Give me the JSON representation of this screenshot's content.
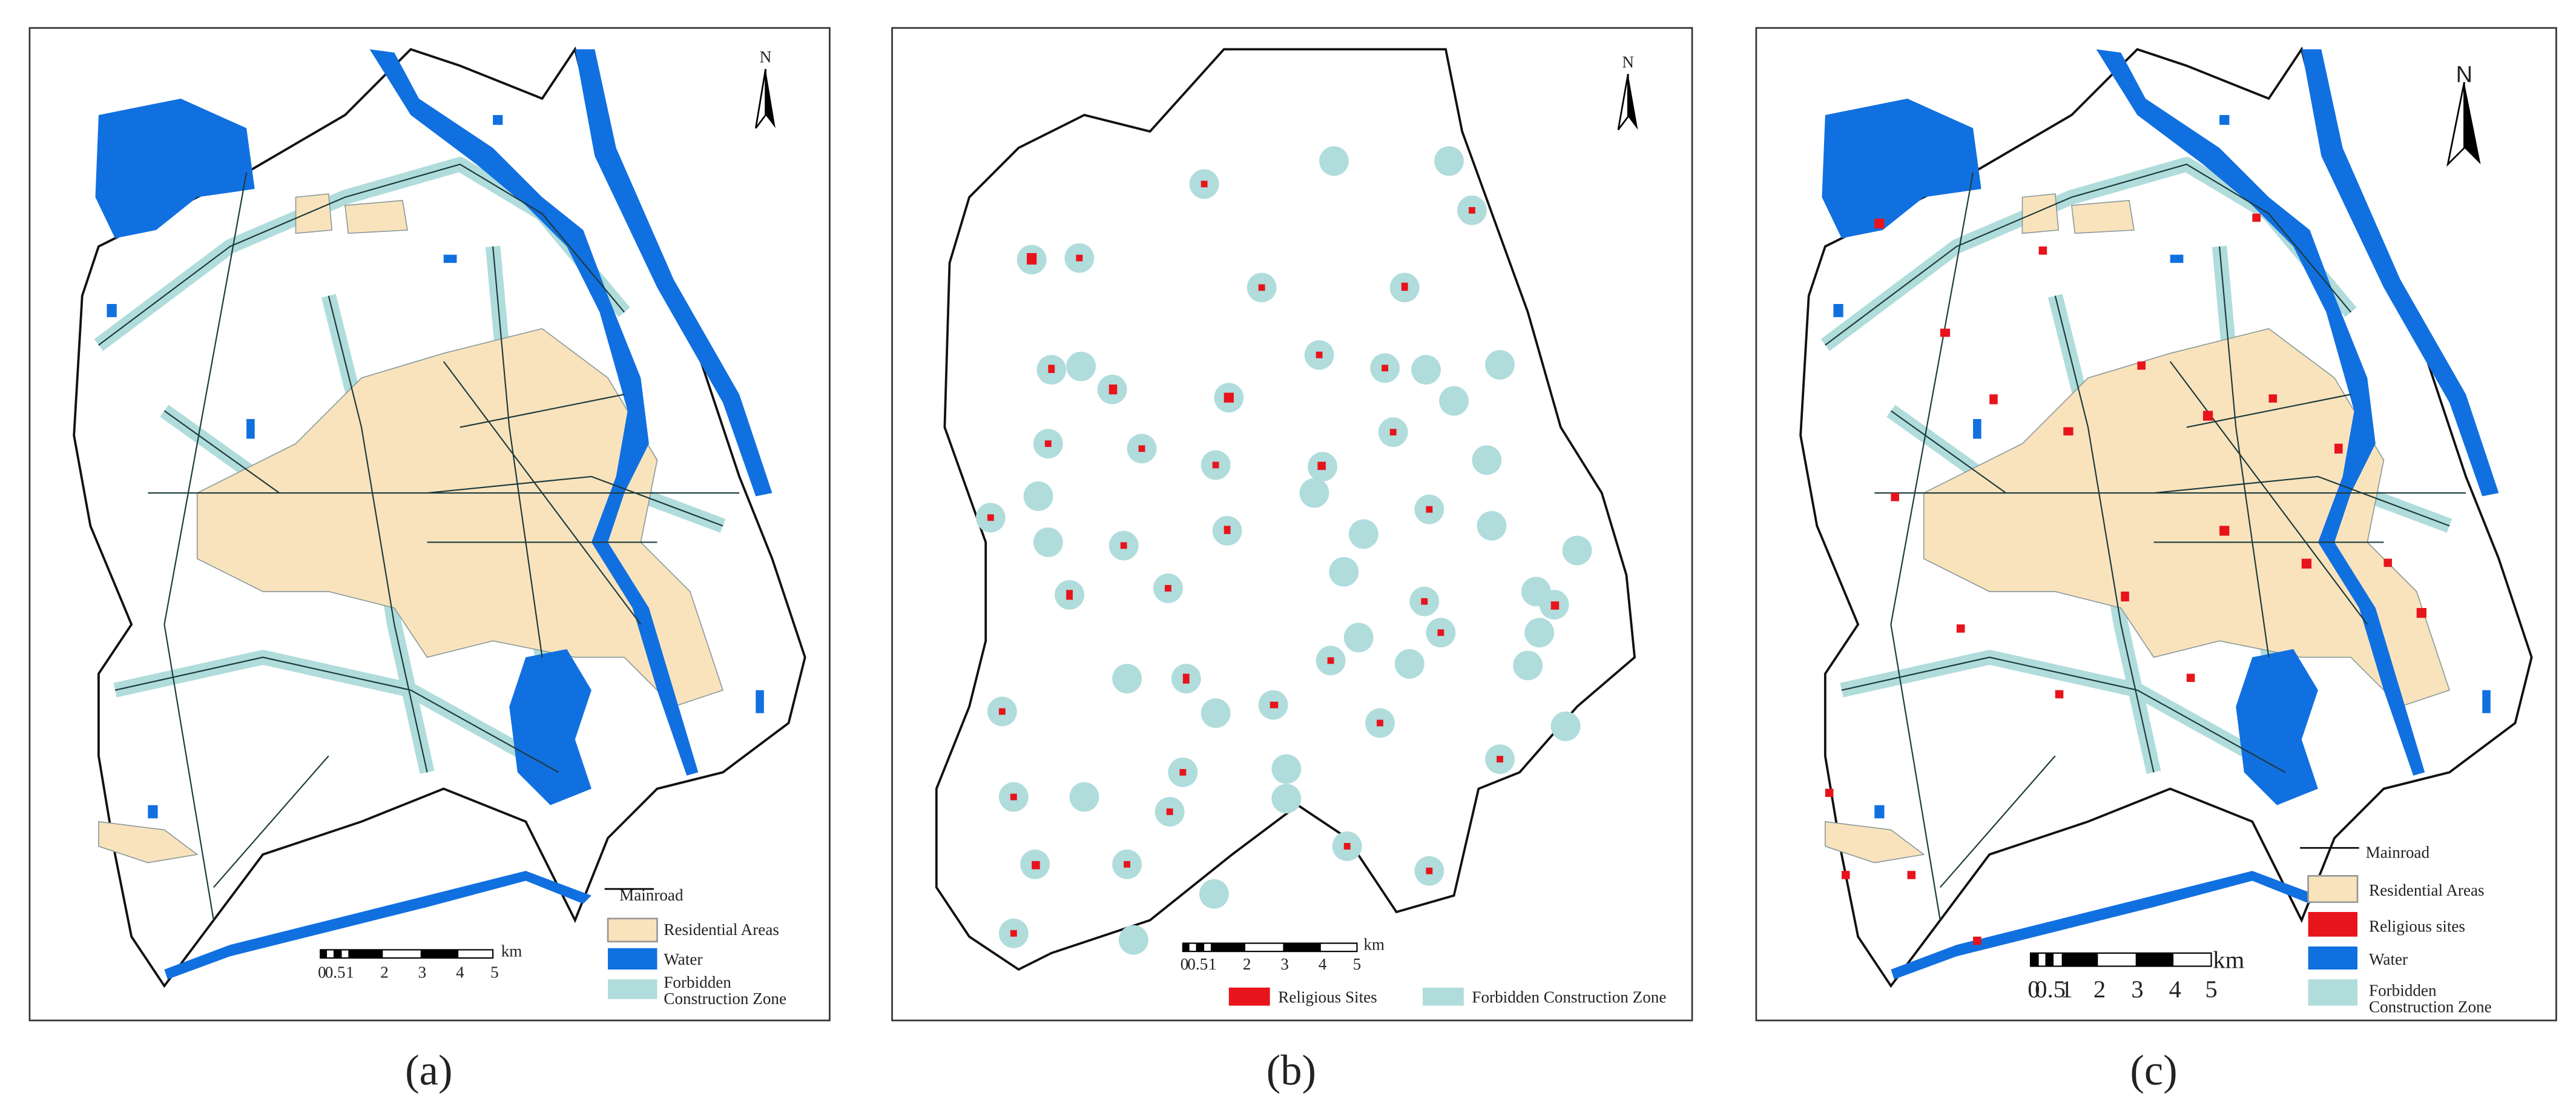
{
  "panels": [
    {
      "caption": "(a)",
      "north": "N",
      "legend": {
        "mainroad": "Mainroad",
        "residential": "Residential Areas",
        "water": "Water",
        "forbidden": [
          "Forbidden",
          "Construction Zone"
        ]
      },
      "scale": {
        "labels": [
          "0",
          "0.5",
          "1",
          "2",
          "3",
          "4",
          "5"
        ],
        "unit": "km"
      }
    },
    {
      "caption": "(b)",
      "north": "N",
      "legend": {
        "religious": "Religious Sites",
        "forbidden": "Forbidden Construction Zone"
      },
      "scale": {
        "labels": [
          "0",
          "0.5",
          "1",
          "2",
          "3",
          "4",
          "5"
        ],
        "unit": "km"
      }
    },
    {
      "caption": "(c)",
      "north": "N",
      "legend": {
        "mainroad": "Mainroad",
        "residential": "Residential Areas",
        "religious": "Religious sites",
        "water": "Water",
        "forbidden": [
          "Forbidden",
          "Construction Zone"
        ]
      },
      "scale": {
        "labels": [
          "0",
          "0.5",
          "1",
          "2",
          "3",
          "4",
          "5"
        ],
        "unit": "km"
      }
    }
  ]
}
